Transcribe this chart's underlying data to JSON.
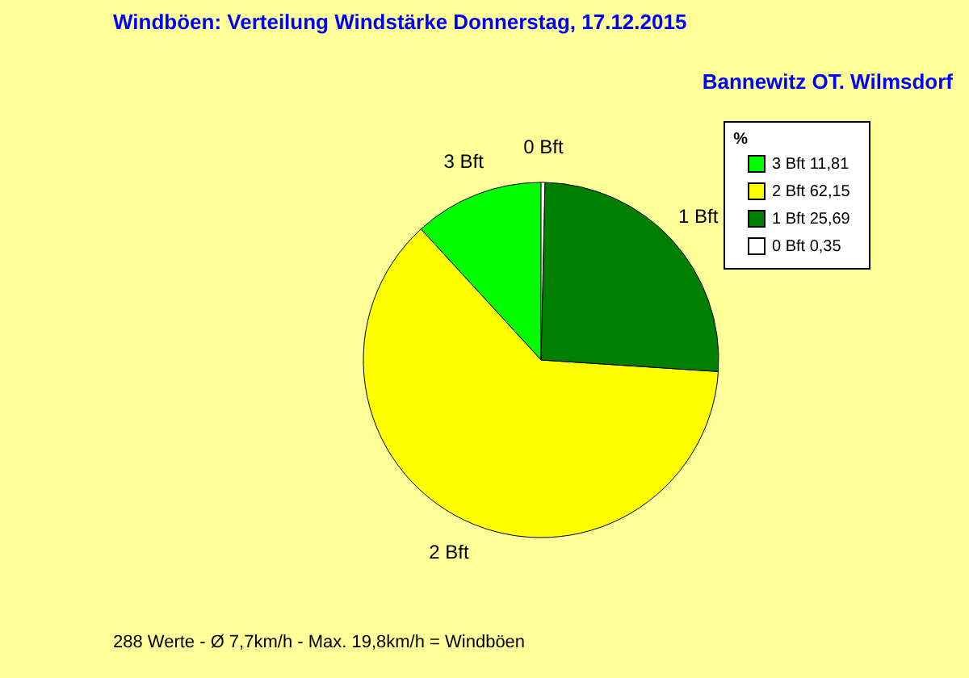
{
  "chart_data": {
    "type": "pie",
    "title": "Windböen: Verteilung Windstärke  Donnerstag, 17.12.2015",
    "subtitle": "Bannewitz OT. Wilmsdorf",
    "categories": [
      "3 Bft",
      "2 Bft",
      "1 Bft",
      "0 Bft"
    ],
    "values": [
      11.81,
      62.15,
      25.69,
      0.35
    ],
    "value_labels": [
      "11,81",
      "62,15",
      "25,69",
      "0,35"
    ],
    "colors": [
      "#00ff00",
      "#ffff00",
      "#008000",
      "#ffffff"
    ],
    "legend_title": "%",
    "legend": "top right",
    "annotations": [
      "288 Werte   -   Ø 7,7km/h   -   Max. 19,8km/h = Windböen"
    ]
  }
}
